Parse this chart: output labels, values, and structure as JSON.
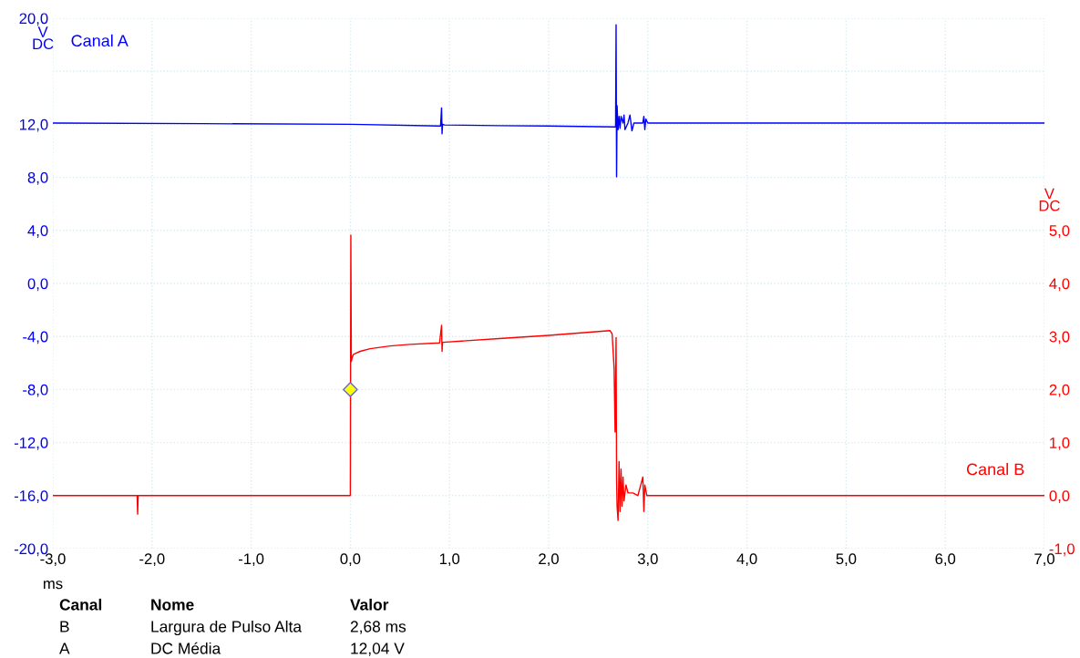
{
  "chart_data": {
    "type": "line",
    "xlabel": "ms",
    "ylabel": "V\nDC",
    "y2label": "V\nDC",
    "xlim": [
      -3,
      7
    ],
    "xticks": [
      {
        "value": -3,
        "label": "-3,0"
      },
      {
        "value": -2,
        "label": "-2,0"
      },
      {
        "value": -1,
        "label": "-1,0"
      },
      {
        "value": 0,
        "label": "0,0"
      },
      {
        "value": 1,
        "label": "1,0"
      },
      {
        "value": 2,
        "label": "2,0"
      },
      {
        "value": 3,
        "label": "3,0"
      },
      {
        "value": 4,
        "label": "4,0"
      },
      {
        "value": 5,
        "label": "5,0"
      },
      {
        "value": 6,
        "label": "6,0"
      },
      {
        "value": 7,
        "label": "7,0"
      }
    ],
    "ylim": [
      -20,
      20
    ],
    "yticks": [
      {
        "value": -20,
        "label": "-20,0"
      },
      {
        "value": -16,
        "label": "-16,0"
      },
      {
        "value": -12,
        "label": "-12,0"
      },
      {
        "value": -8,
        "label": "-8,0"
      },
      {
        "value": -4,
        "label": "-4,0"
      },
      {
        "value": 0,
        "label": "0,0"
      },
      {
        "value": 4,
        "label": "4,0"
      },
      {
        "value": 8,
        "label": "8,0"
      },
      {
        "value": 12,
        "label": "12,0"
      },
      {
        "value": 16,
        "label": null
      },
      {
        "value": 20,
        "label": "20,0"
      }
    ],
    "y2lim": [
      -1,
      9
    ],
    "y2ticks": [
      {
        "value": -1,
        "label": "-1,0"
      },
      {
        "value": 0,
        "label": "0,0"
      },
      {
        "value": 1,
        "label": "1,0"
      },
      {
        "value": 2,
        "label": "2,0"
      },
      {
        "value": 3,
        "label": "3,0"
      },
      {
        "value": 4,
        "label": "4,0"
      },
      {
        "value": 5,
        "label": "5,0"
      }
    ],
    "grid": true,
    "legend": false,
    "series": [
      {
        "name": "Canal A",
        "color": "#0000ff",
        "axis": "y",
        "x": [
          -3,
          -1.5,
          0,
          0.9,
          0.91,
          0.92,
          0.925,
          0.93,
          0.95,
          1.5,
          2.0,
          2.66,
          2.675,
          2.68,
          2.685,
          2.69,
          2.7,
          2.71,
          2.72,
          2.73,
          2.75,
          2.76,
          2.77,
          2.8,
          2.82,
          2.84,
          2.86,
          2.9,
          2.95,
          2.96,
          2.97,
          2.98,
          3.0,
          4.0,
          5.0,
          6.0,
          7.0
        ],
        "values": [
          12.1,
          12.05,
          12.0,
          11.87,
          11.87,
          13.24,
          11.29,
          12.0,
          11.95,
          11.9,
          11.87,
          11.8,
          11.8,
          19.5,
          8.04,
          13.4,
          11.6,
          12.6,
          11.7,
          12.6,
          12.1,
          12.7,
          11.6,
          12.1,
          12.7,
          11.5,
          12.1,
          12.1,
          12.1,
          12.6,
          11.6,
          12.4,
          12.1,
          12.1,
          12.1,
          12.1,
          12.1
        ]
      },
      {
        "name": "Canal B",
        "color": "#ff0000",
        "axis": "y2",
        "x": [
          -3,
          -2.15,
          -2.145,
          -2.14,
          -1,
          0,
          0.005,
          0.01,
          0.02,
          0.03,
          0.05,
          0.1,
          0.2,
          0.4,
          0.6,
          0.9,
          0.92,
          0.925,
          0.93,
          1.5,
          2.0,
          2.62,
          2.64,
          2.66,
          2.67,
          2.68,
          2.685,
          2.69,
          2.7,
          2.71,
          2.72,
          2.73,
          2.74,
          2.75,
          2.76,
          2.78,
          2.8,
          2.85,
          2.9,
          2.95,
          2.96,
          2.97,
          2.99,
          3.0,
          4.0,
          5.0,
          6.0,
          7.0
        ],
        "values": [
          0,
          0,
          -0.35,
          0,
          0,
          0,
          4.91,
          2.53,
          2.61,
          2.66,
          2.68,
          2.72,
          2.77,
          2.82,
          2.85,
          2.88,
          3.21,
          2.72,
          2.89,
          2.96,
          3.02,
          3.11,
          3.05,
          2.4,
          1.2,
          2.98,
          0.3,
          -0.2,
          -0.47,
          0.64,
          -0.3,
          0.5,
          -0.2,
          0.35,
          -0.1,
          0.2,
          0.05,
          0.05,
          0.0,
          0.35,
          -0.3,
          0.2,
          0.0,
          0.0,
          0.0,
          0.0,
          0.0,
          0.0
        ]
      },
      {
        "type": "scatter",
        "color": "#ffff00",
        "axis": "y2",
        "marker": "diamond",
        "x": [
          0
        ],
        "values": [
          2.0
        ]
      }
    ],
    "annotations": [
      "Canal",
      "Nome",
      "Valor",
      "B",
      "Largura de Pulso Alta",
      "2,68 ms",
      "A",
      "DC Média",
      "12,04 V"
    ]
  }
}
